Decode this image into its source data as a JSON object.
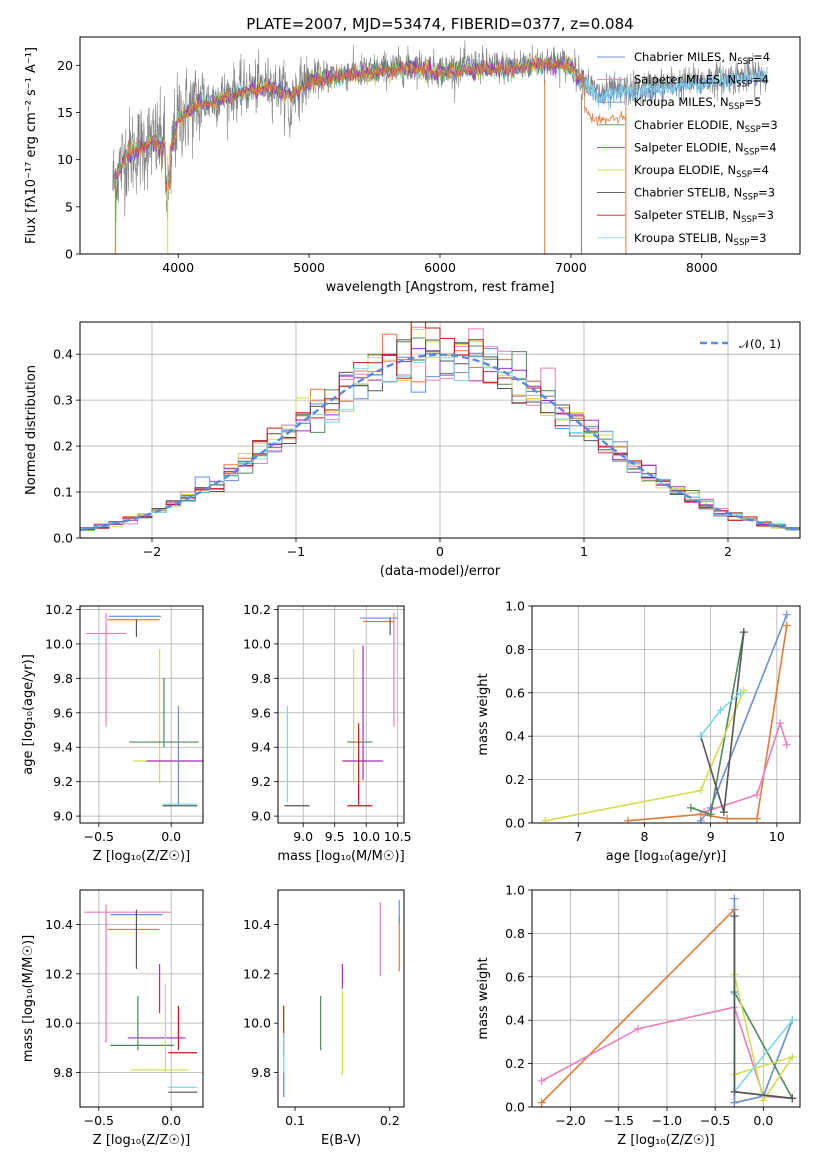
{
  "figure_title": "PLATE=2007, MJD=53474, FIBERID=0377, z=0.084",
  "colors": {
    "Chabrier MILES": "#6a8fd8",
    "Salpeter MILES": "#e87fbf",
    "Kroupa MILES": "#6a8fd8",
    "Chabrier ELODIE": "#4f8a5a",
    "Salpeter ELODIE": "#a32fc0",
    "Kroupa ELODIE": "#d4dc55",
    "Chabrier STELIB": "#555555",
    "Salpeter STELIB": "#c01a1a",
    "Kroupa STELIB": "#7ed8e8",
    "data": "#808080",
    "model_orange": "#e07b39",
    "normal_curve": "#5a8ad8"
  },
  "chart_data": [
    {
      "id": "spectrum",
      "type": "line",
      "xlabel": "wavelength [Angstrom, rest frame]",
      "ylabel": "Flux [fλ10⁻¹⁷ erg cm⁻² s⁻¹ A⁻¹]",
      "xlim": [
        3250,
        8750
      ],
      "ylim": [
        0,
        23
      ],
      "xticks": [
        4000,
        5000,
        6000,
        7000,
        8000
      ],
      "yticks": [
        0,
        5,
        10,
        15,
        20
      ],
      "grid": false,
      "legend_position": "top-right",
      "data_range": [
        3500,
        8500
      ],
      "data_trend": {
        "x": [
          3500,
          3600,
          3800,
          3950,
          4000,
          4150,
          4300,
          4500,
          4700,
          4860,
          5000,
          5200,
          5500,
          5800,
          6000,
          6300,
          6500,
          6800,
          7000,
          7200,
          7500,
          7800,
          8100,
          8400
        ],
        "y": [
          7.5,
          10.5,
          12.0,
          11.5,
          14.5,
          16.0,
          16.5,
          17.5,
          18.0,
          17.0,
          18.5,
          19.0,
          19.5,
          20.0,
          19.5,
          20.0,
          19.8,
          20.5,
          20.0,
          17.0,
          17.5,
          18.0,
          18.5,
          19.0
        ]
      },
      "model_break": 7100,
      "model_end": 7420,
      "series": [
        {
          "name": "Chabrier MILES, N_SSP=4",
          "label_main": "Chabrier MILES, N",
          "label_sub": "SSP",
          "label_suffix": "=4"
        },
        {
          "name": "Salpeter MILES, N_SSP=4",
          "label_main": "Salpeter MILES, N",
          "label_sub": "SSP",
          "label_suffix": "=4"
        },
        {
          "name": "Kroupa MILES, N_SSP=5",
          "label_main": "Kroupa MILES, N",
          "label_sub": "SSP",
          "label_suffix": "=5"
        },
        {
          "name": "Chabrier ELODIE, N_SSP=3",
          "label_main": "Chabrier ELODIE, N",
          "label_sub": "SSP",
          "label_suffix": "=3"
        },
        {
          "name": "Salpeter ELODIE, N_SSP=4",
          "label_main": "Salpeter ELODIE, N",
          "label_sub": "SSP",
          "label_suffix": "=4"
        },
        {
          "name": "Kroupa ELODIE, N_SSP=4",
          "label_main": "Kroupa ELODIE, N",
          "label_sub": "SSP",
          "label_suffix": "=4"
        },
        {
          "name": "Chabrier STELIB, N_SSP=3",
          "label_main": "Chabrier STELIB, N",
          "label_sub": "SSP",
          "label_suffix": "=3"
        },
        {
          "name": "Salpeter STELIB, N_SSP=3",
          "label_main": "Salpeter STELIB, N",
          "label_sub": "SSP",
          "label_suffix": "=3"
        },
        {
          "name": "Kroupa STELIB, N_SSP=3",
          "label_main": "Kroupa STELIB, N",
          "label_sub": "SSP",
          "label_suffix": "=3"
        }
      ]
    },
    {
      "id": "residual_hist",
      "type": "area",
      "xlabel": "(data-model)/error",
      "ylabel": "Normed distribution",
      "xlim": [
        -2.5,
        2.5
      ],
      "ylim": [
        0,
        0.47
      ],
      "xticks": [
        -2,
        -1,
        0,
        1,
        2
      ],
      "yticks": [
        0.0,
        0.1,
        0.2,
        0.3,
        0.4
      ],
      "grid": true,
      "legend_position": "top-right",
      "legend_label": "𝒩(0, 1)",
      "bin_width": 0.1
    },
    {
      "id": "age_vs_Z",
      "type": "scatter",
      "xlabel": "Z [log₁₀(Z/Z☉)]",
      "ylabel": "age  [log₁₀(age/yr)]",
      "xlim": [
        -0.63,
        0.22
      ],
      "ylim": [
        8.96,
        10.22
      ],
      "xticks": [
        -0.5,
        0.0
      ],
      "yticks": [
        9.0,
        9.2,
        9.4,
        9.6,
        9.8,
        10.0,
        10.2
      ],
      "grid": true,
      "errorbars": [
        {
          "model": "Chabrier MILES",
          "x": -0.25,
          "xerr": 0.18,
          "y": 10.16,
          "yerr": 0.0
        },
        {
          "model": "Salpeter MILES",
          "x": -0.45,
          "xerr": 0.14,
          "y": 10.06,
          "yerr": 0.0
        },
        {
          "model": "Salpeter MILES",
          "x": -0.45,
          "xerr": 0.0,
          "y": 9.85,
          "yerr": 0.33
        },
        {
          "model": "Kroupa ELODIE",
          "x": -0.08,
          "xerr": 0.18,
          "y": 9.32,
          "yerr": 0.0
        },
        {
          "model": "Kroupa ELODIE",
          "x": -0.08,
          "xerr": 0.0,
          "y": 9.58,
          "yerr": 0.39
        },
        {
          "model": "Chabrier ELODIE",
          "x": -0.05,
          "xerr": 0.24,
          "y": 9.43,
          "yerr": 0.0
        },
        {
          "model": "Chabrier ELODIE",
          "x": -0.05,
          "xerr": 0.0,
          "y": 9.6,
          "yerr": 0.2
        },
        {
          "model": "Salpeter ELODIE",
          "x": 0.03,
          "xerr": 0.2,
          "y": 9.32,
          "yerr": 0.0
        },
        {
          "model": "Chabrier STELIB",
          "x": 0.06,
          "xerr": 0.12,
          "y": 9.06,
          "yerr": 0.0
        },
        {
          "model": "Kroupa STELIB",
          "x": 0.06,
          "xerr": 0.12,
          "y": 9.07,
          "yerr": 0.0
        },
        {
          "model": "Chabrier MILES",
          "x": 0.05,
          "xerr": 0.0,
          "y": 9.35,
          "yerr": 0.29
        },
        {
          "model": "model_orange",
          "x": -0.26,
          "xerr": 0.18,
          "y": 10.14,
          "yerr": 0.0
        },
        {
          "model": "Chabrier STELIB",
          "x": -0.24,
          "xerr": 0.0,
          "y": 10.09,
          "yerr": 0.05
        }
      ]
    },
    {
      "id": "age_vs_mass",
      "type": "scatter",
      "xlabel": "mass [log₁₀(M/M☉)]",
      "ylabel": "",
      "xlim": [
        8.6,
        10.6
      ],
      "ylim": [
        8.96,
        10.22
      ],
      "xticks": [
        9.0,
        9.5,
        10.0,
        10.5
      ],
      "yticks": [
        9.0,
        9.2,
        9.4,
        9.6,
        9.8,
        10.0,
        10.2
      ],
      "grid": true,
      "errorbars": [
        {
          "model": "Chabrier MILES",
          "x": 10.2,
          "xerr": 0.3,
          "y": 10.15,
          "yerr": 0.0
        },
        {
          "model": "Salpeter MILES",
          "x": 10.44,
          "xerr": 0.0,
          "y": 9.85,
          "yerr": 0.33
        },
        {
          "model": "model_orange",
          "x": 10.2,
          "xerr": 0.25,
          "y": 10.13,
          "yerr": 0.0
        },
        {
          "model": "Chabrier STELIB",
          "x": 10.38,
          "xerr": 0.0,
          "y": 10.1,
          "yerr": 0.05
        },
        {
          "model": "Kroupa ELODIE",
          "x": 9.8,
          "xerr": 0.0,
          "y": 9.58,
          "yerr": 0.39
        },
        {
          "model": "Kroupa ELODIE",
          "x": 9.8,
          "xerr": 0.2,
          "y": 9.32,
          "yerr": 0.0
        },
        {
          "model": "Salpeter ELODIE",
          "x": 9.95,
          "xerr": 0.0,
          "y": 9.6,
          "yerr": 0.39
        },
        {
          "model": "Salpeter ELODIE",
          "x": 9.95,
          "xerr": 0.32,
          "y": 9.32,
          "yerr": 0.0
        },
        {
          "model": "Chabrier ELODIE",
          "x": 9.9,
          "xerr": 0.2,
          "y": 9.43,
          "yerr": 0.0
        },
        {
          "model": "Salpeter STELIB",
          "x": 9.9,
          "xerr": 0.2,
          "y": 9.06,
          "yerr": 0.0
        },
        {
          "model": "Salpeter STELIB",
          "x": 9.88,
          "xerr": 0.0,
          "y": 9.3,
          "yerr": 0.24
        },
        {
          "model": "Kroupa STELIB",
          "x": 8.75,
          "xerr": 0.0,
          "y": 9.36,
          "yerr": 0.28
        },
        {
          "model": "Chabrier STELIB",
          "x": 8.9,
          "xerr": 0.2,
          "y": 9.06,
          "yerr": 0.0
        }
      ]
    },
    {
      "id": "massweight_vs_age",
      "type": "line",
      "xlabel": "age  [log₁₀(age/yr)]",
      "ylabel": "mass weight",
      "xlim": [
        6.3,
        10.35
      ],
      "ylim": [
        0,
        1.0
      ],
      "xticks": [
        7,
        8,
        9,
        10
      ],
      "yticks": [
        0.0,
        0.2,
        0.4,
        0.6,
        0.8,
        1.0
      ],
      "grid": true,
      "series": [
        {
          "model": "Chabrier MILES",
          "x": [
            8.85,
            9.0,
            10.15
          ],
          "y": [
            0.01,
            0.07,
            0.96
          ]
        },
        {
          "model": "model_orange",
          "x": [
            7.75,
            8.85,
            9.25,
            9.7,
            10.15
          ],
          "y": [
            0.01,
            0.04,
            0.02,
            0.02,
            0.91
          ]
        },
        {
          "model": "Salpeter MILES",
          "x": [
            8.9,
            9.7,
            10.05,
            10.15
          ],
          "y": [
            0.05,
            0.13,
            0.46,
            0.36
          ]
        },
        {
          "model": "Chabrier ELODIE",
          "x": [
            8.7,
            9.0,
            9.5
          ],
          "y": [
            0.07,
            0.04,
            0.88
          ]
        },
        {
          "model": "Kroupa ELODIE",
          "x": [
            6.5,
            8.85,
            9.5
          ],
          "y": [
            0.01,
            0.15,
            0.61
          ]
        },
        {
          "model": "Chabrier STELIB",
          "x": [
            8.85,
            9.2,
            9.5
          ],
          "y": [
            0.4,
            0.05,
            0.88
          ]
        },
        {
          "model": "Kroupa STELIB",
          "x": [
            8.85,
            9.15,
            9.45
          ],
          "y": [
            0.4,
            0.52,
            0.6
          ]
        }
      ]
    },
    {
      "id": "mass_vs_Z",
      "type": "scatter",
      "xlabel": "Z [log₁₀(Z/Z☉)]",
      "ylabel": "mass [log₁₀(M/M☉)]",
      "xlim": [
        -0.63,
        0.22
      ],
      "ylim": [
        9.66,
        10.54
      ],
      "xticks": [
        -0.5,
        0.0
      ],
      "yticks": [
        9.8,
        10.0,
        10.2,
        10.4
      ],
      "grid": true,
      "errorbars": [
        {
          "model": "Salpeter MILES",
          "x": -0.3,
          "xerr": 0.3,
          "y": 10.45,
          "yerr": 0.0
        },
        {
          "model": "Chabrier MILES",
          "x": -0.24,
          "xerr": 0.18,
          "y": 10.44,
          "yerr": 0.0
        },
        {
          "model": "model_orange",
          "x": -0.26,
          "xerr": 0.18,
          "y": 10.38,
          "yerr": 0.0
        },
        {
          "model": "Salpeter MILES",
          "x": -0.45,
          "xerr": 0.0,
          "y": 10.2,
          "yerr": 0.28
        },
        {
          "model": "Chabrier STELIB",
          "x": -0.24,
          "xerr": 0.0,
          "y": 10.34,
          "yerr": 0.12
        },
        {
          "model": "Salpeter ELODIE",
          "x": -0.08,
          "xerr": 0.0,
          "y": 10.14,
          "yerr": 0.1
        },
        {
          "model": "Salpeter ELODIE",
          "x": -0.1,
          "xerr": 0.2,
          "y": 9.94,
          "yerr": 0.0
        },
        {
          "model": "Chabrier ELODIE",
          "x": -0.2,
          "xerr": 0.22,
          "y": 9.91,
          "yerr": 0.0
        },
        {
          "model": "Chabrier ELODIE",
          "x": -0.23,
          "xerr": 0.0,
          "y": 10.0,
          "yerr": 0.11
        },
        {
          "model": "Kroupa ELODIE",
          "x": -0.08,
          "xerr": 0.2,
          "y": 9.81,
          "yerr": 0.0
        },
        {
          "model": "Kroupa ELODIE",
          "x": -0.04,
          "xerr": 0.0,
          "y": 9.98,
          "yerr": 0.18
        },
        {
          "model": "Salpeter STELIB",
          "x": 0.08,
          "xerr": 0.1,
          "y": 9.88,
          "yerr": 0.0
        },
        {
          "model": "Salpeter STELIB",
          "x": 0.05,
          "xerr": 0.0,
          "y": 9.98,
          "yerr": 0.09
        },
        {
          "model": "Kroupa STELIB",
          "x": 0.08,
          "xerr": 0.1,
          "y": 9.74,
          "yerr": 0.0
        },
        {
          "model": "Chabrier STELIB",
          "x": 0.08,
          "xerr": 0.1,
          "y": 9.72,
          "yerr": 0.0
        }
      ]
    },
    {
      "id": "mass_vs_ebv",
      "type": "scatter",
      "xlabel": "E(B-V)",
      "ylabel": "",
      "xlim": [
        0.082,
        0.215
      ],
      "ylim": [
        9.66,
        10.54
      ],
      "xticks": [
        0.1,
        0.2
      ],
      "yticks": [
        9.8,
        10.0,
        10.2,
        10.4
      ],
      "grid": false,
      "errorbars": [
        {
          "model": "Salpeter STELIB",
          "x": 0.088,
          "xerr": 0.0,
          "y": 9.97,
          "yerr": 0.1
        },
        {
          "model": "Kroupa STELIB",
          "x": 0.088,
          "xerr": 0.0,
          "y": 9.83,
          "yerr": 0.13
        },
        {
          "model": "Chabrier MILES",
          "x": 0.088,
          "xerr": 0.0,
          "y": 9.75,
          "yerr": 0.05
        },
        {
          "model": "Chabrier ELODIE",
          "x": 0.127,
          "xerr": 0.0,
          "y": 10.0,
          "yerr": 0.11
        },
        {
          "model": "Kroupa ELODIE",
          "x": 0.15,
          "xerr": 0.0,
          "y": 9.96,
          "yerr": 0.17
        },
        {
          "model": "Salpeter ELODIE",
          "x": 0.15,
          "xerr": 0.0,
          "y": 10.19,
          "yerr": 0.05
        },
        {
          "model": "Salpeter MILES",
          "x": 0.19,
          "xerr": 0.0,
          "y": 10.34,
          "yerr": 0.15
        },
        {
          "model": "model_orange",
          "x": 0.21,
          "xerr": 0.0,
          "y": 10.32,
          "yerr": 0.11
        },
        {
          "model": "Chabrier MILES",
          "x": 0.21,
          "xerr": 0.0,
          "y": 10.45,
          "yerr": 0.05
        }
      ]
    },
    {
      "id": "massweight_vs_Z",
      "type": "line",
      "xlabel": "Z [log₁₀(Z/Z☉)]",
      "ylabel": "mass weight",
      "xlim": [
        -2.4,
        0.38
      ],
      "ylim": [
        0,
        1.0
      ],
      "xticks": [
        -2.0,
        -1.5,
        -1.0,
        -0.5,
        0.0
      ],
      "yticks": [
        0.0,
        0.2,
        0.4,
        0.6,
        0.8,
        1.0
      ],
      "grid": true,
      "series": [
        {
          "model": "model_orange",
          "x": [
            -2.3,
            -0.3,
            -0.3
          ],
          "y": [
            0.02,
            0.91,
            0.02
          ]
        },
        {
          "model": "Salpeter MILES",
          "x": [
            -2.3,
            -1.3,
            -0.3,
            0.0,
            0.3
          ],
          "y": [
            0.12,
            0.36,
            0.46,
            0.05,
            0.04
          ]
        },
        {
          "model": "Chabrier MILES",
          "x": [
            -0.3,
            -0.3,
            0.0,
            0.3
          ],
          "y": [
            0.96,
            0.02,
            0.05,
            0.4
          ]
        },
        {
          "model": "Chabrier ELODIE",
          "x": [
            -0.3,
            -0.3,
            0.3,
            -0.3
          ],
          "y": [
            0.88,
            0.07,
            0.04,
            0.53
          ]
        },
        {
          "model": "Kroupa ELODIE",
          "x": [
            -0.3,
            0.0,
            0.3,
            -0.3
          ],
          "y": [
            0.61,
            0.03,
            0.23,
            0.15
          ]
        },
        {
          "model": "Kroupa STELIB",
          "x": [
            -0.3,
            -0.3,
            0.3
          ],
          "y": [
            0.52,
            0.07,
            0.4
          ]
        },
        {
          "model": "Chabrier STELIB",
          "x": [
            -0.3,
            -0.3,
            0.3
          ],
          "y": [
            0.88,
            0.07,
            0.04
          ]
        }
      ]
    }
  ]
}
